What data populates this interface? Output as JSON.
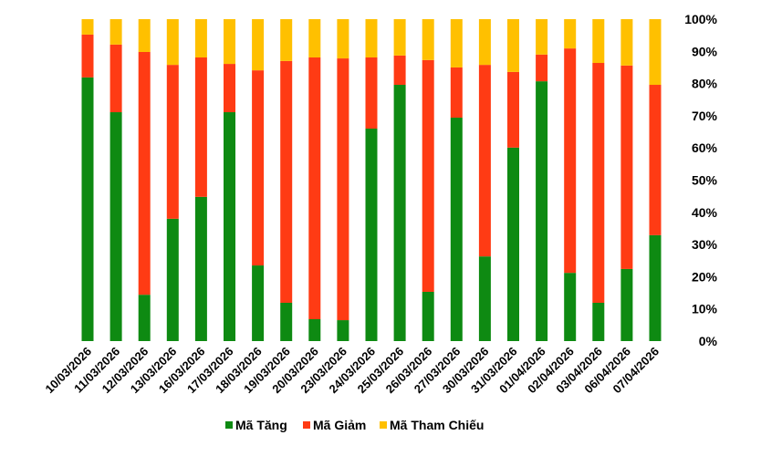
{
  "chart_data": {
    "type": "bar",
    "stacked": true,
    "percent_stacked": true,
    "title": "",
    "xlabel": "",
    "ylabel": "",
    "ylim": [
      0,
      100
    ],
    "y_ticks": [
      "0%",
      "10%",
      "20%",
      "30%",
      "40%",
      "50%",
      "60%",
      "70%",
      "80%",
      "90%",
      "100%"
    ],
    "y_axis_position": "right",
    "grid": false,
    "legend_position": "bottom",
    "categories": [
      "10/03/2026",
      "11/03/2026",
      "12/03/2026",
      "13/03/2026",
      "16/03/2026",
      "17/03/2026",
      "18/03/2026",
      "19/03/2026",
      "20/03/2026",
      "23/03/2026",
      "24/03/2026",
      "25/03/2026",
      "26/03/2026",
      "27/03/2026",
      "30/03/2026",
      "31/03/2026",
      "01/04/2026",
      "02/04/2026",
      "03/04/2026",
      "06/04/2026",
      "07/04/2026"
    ],
    "series": [
      {
        "name": "Mã Tăng",
        "color": "#0e8a12",
        "values": [
          81.9,
          71.1,
          14.4,
          38.0,
          44.8,
          71.1,
          23.5,
          11.9,
          6.8,
          6.5,
          66.0,
          79.6,
          15.3,
          69.4,
          26.3,
          60.1,
          80.7,
          21.2,
          11.9,
          22.4,
          32.9
        ]
      },
      {
        "name": "Mã Giảm",
        "color": "#ff3b14",
        "values": [
          13.3,
          21.0,
          75.4,
          47.8,
          43.3,
          15.0,
          60.6,
          75.1,
          81.3,
          81.3,
          22.1,
          9.1,
          72.0,
          15.6,
          59.5,
          23.5,
          8.3,
          69.7,
          74.5,
          63.2,
          46.7
        ]
      },
      {
        "name": "Mã Tham Chiếu",
        "color": "#ffc000",
        "values": [
          4.8,
          7.9,
          10.2,
          14.2,
          11.9,
          13.9,
          15.9,
          13.0,
          11.9,
          12.2,
          11.9,
          11.3,
          12.7,
          15.0,
          14.2,
          16.4,
          11.0,
          9.1,
          13.6,
          14.4,
          20.4
        ]
      }
    ]
  }
}
